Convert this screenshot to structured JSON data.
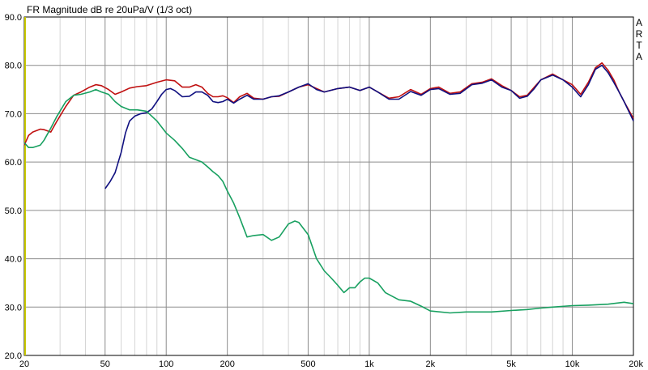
{
  "chart_data": {
    "type": "line",
    "title": "FR Magnitude dB re 20uPa/V (1/3 oct)",
    "watermark": "ARTA",
    "xlabel": "",
    "ylabel": "",
    "x_scale": "log",
    "xlim": [
      20,
      20000
    ],
    "ylim": [
      20,
      90
    ],
    "grid": true,
    "legend": "none",
    "x_ticks": [
      {
        "value": 20,
        "label": "20"
      },
      {
        "value": 50,
        "label": "50"
      },
      {
        "value": 100,
        "label": "100"
      },
      {
        "value": 200,
        "label": "200"
      },
      {
        "value": 500,
        "label": "500"
      },
      {
        "value": 1000,
        "label": "1k"
      },
      {
        "value": 2000,
        "label": "2k"
      },
      {
        "value": 5000,
        "label": "5k"
      },
      {
        "value": 10000,
        "label": "10k"
      },
      {
        "value": 20000,
        "label": "20k"
      }
    ],
    "y_ticks": [
      {
        "value": 90,
        "label": "90.0"
      },
      {
        "value": 80,
        "label": "80.0"
      },
      {
        "value": 70,
        "label": "70.0"
      },
      {
        "value": 60,
        "label": "60.0"
      },
      {
        "value": 50,
        "label": "50.0"
      },
      {
        "value": 40,
        "label": "40.0"
      },
      {
        "value": 30,
        "label": "30.0"
      },
      {
        "value": 20,
        "label": "20.0"
      }
    ],
    "colors": {
      "grid_major": "#8c8c8c",
      "grid_minor": "#d4d4d4",
      "frame": "#000000",
      "left_axis": "#c8c800"
    },
    "series": [
      {
        "color": "#c01010",
        "x": [
          20,
          21,
          22,
          24,
          25,
          27,
          29,
          32,
          35,
          38,
          42,
          45,
          48,
          52,
          56,
          60,
          66,
          72,
          80,
          90,
          100,
          110,
          120,
          130,
          140,
          150,
          160,
          170,
          180,
          190,
          200,
          215,
          230,
          250,
          270,
          300,
          330,
          360,
          400,
          450,
          500,
          550,
          600,
          700,
          800,
          900,
          1000,
          1100,
          1250,
          1400,
          1600,
          1800,
          2000,
          2200,
          2500,
          2800,
          3200,
          3600,
          4000,
          4500,
          5000,
          5500,
          6000,
          6500,
          7000,
          8000,
          9000,
          10000,
          11000,
          12000,
          13000,
          14000,
          15000,
          16000,
          17000,
          18000,
          20000
        ],
        "y": [
          63.5,
          65.5,
          66.2,
          66.8,
          66.7,
          66.2,
          68.5,
          71.5,
          73.8,
          74.5,
          75.5,
          76.0,
          75.8,
          75.0,
          74.0,
          74.5,
          75.3,
          75.6,
          75.8,
          76.5,
          77.0,
          76.8,
          75.5,
          75.5,
          76.0,
          75.5,
          74.2,
          73.5,
          73.5,
          73.7,
          73.3,
          72.3,
          73.5,
          74.2,
          73.2,
          73.0,
          73.5,
          73.6,
          74.5,
          75.5,
          76.0,
          75.2,
          74.5,
          75.2,
          75.5,
          74.8,
          75.5,
          74.5,
          73.2,
          73.5,
          75.0,
          74.0,
          75.2,
          75.5,
          74.2,
          74.5,
          76.2,
          76.5,
          77.2,
          75.8,
          74.8,
          73.5,
          73.8,
          75.5,
          77.0,
          78.2,
          77.0,
          76.0,
          74.0,
          76.5,
          79.5,
          80.5,
          79.0,
          77.0,
          74.5,
          72.5,
          69.0
        ]
      },
      {
        "color": "#101080",
        "x": [
          50,
          53,
          56,
          60,
          63,
          66,
          70,
          75,
          80,
          85,
          90,
          95,
          100,
          105,
          110,
          120,
          130,
          140,
          150,
          160,
          170,
          180,
          190,
          200,
          215,
          230,
          250,
          270,
          300,
          330,
          360,
          400,
          450,
          500,
          550,
          600,
          700,
          800,
          900,
          1000,
          1100,
          1250,
          1400,
          1600,
          1800,
          2000,
          2200,
          2500,
          2800,
          3200,
          3600,
          4000,
          4500,
          5000,
          5500,
          6000,
          6500,
          7000,
          8000,
          9000,
          10000,
          11000,
          12000,
          13000,
          14000,
          15000,
          16000,
          17000,
          18000,
          20000
        ],
        "y": [
          54.5,
          56.0,
          57.8,
          62.0,
          66.0,
          68.5,
          69.5,
          70.0,
          70.2,
          71.0,
          72.5,
          74.0,
          75.0,
          75.2,
          74.8,
          73.5,
          73.6,
          74.5,
          74.5,
          73.8,
          72.5,
          72.3,
          72.5,
          73.0,
          72.2,
          73.0,
          73.8,
          73.0,
          73.0,
          73.5,
          73.7,
          74.5,
          75.5,
          76.2,
          75.0,
          74.5,
          75.2,
          75.5,
          74.8,
          75.5,
          74.5,
          73.0,
          73.0,
          74.6,
          73.8,
          75.0,
          75.2,
          74.0,
          74.2,
          76.0,
          76.3,
          77.0,
          75.5,
          74.8,
          73.2,
          73.6,
          75.2,
          77.0,
          78.0,
          77.0,
          75.5,
          73.5,
          76.0,
          79.2,
          80.0,
          78.5,
          76.5,
          74.5,
          72.5,
          68.5
        ]
      },
      {
        "color": "#18a060",
        "x": [
          20,
          21,
          22,
          24,
          25,
          27,
          29,
          32,
          35,
          38,
          42,
          45,
          48,
          52,
          56,
          60,
          66,
          72,
          80,
          90,
          100,
          110,
          120,
          130,
          140,
          150,
          160,
          170,
          180,
          190,
          200,
          215,
          230,
          250,
          270,
          300,
          330,
          360,
          400,
          430,
          450,
          500,
          550,
          600,
          650,
          700,
          750,
          800,
          850,
          900,
          950,
          1000,
          1100,
          1200,
          1400,
          1600,
          1800,
          2000,
          2500,
          3000,
          3500,
          4000,
          5000,
          6000,
          7000,
          8000,
          10000,
          12000,
          15000,
          18000,
          20000
        ],
        "y": [
          64.0,
          63.0,
          63.0,
          63.5,
          64.5,
          67.0,
          69.5,
          72.5,
          73.8,
          74.0,
          74.5,
          75.0,
          74.5,
          74.0,
          72.5,
          71.5,
          70.8,
          70.8,
          70.5,
          68.5,
          66.0,
          64.5,
          62.8,
          61.0,
          60.5,
          60.0,
          59.0,
          58.0,
          57.2,
          56.0,
          54.0,
          51.5,
          48.5,
          44.5,
          44.8,
          45.0,
          43.8,
          44.5,
          47.2,
          47.8,
          47.5,
          45.0,
          40.0,
          37.5,
          36.0,
          34.5,
          33.0,
          34.0,
          34.0,
          35.2,
          36.0,
          36.0,
          35.0,
          33.0,
          31.5,
          31.2,
          30.2,
          29.2,
          28.8,
          29.0,
          29.0,
          29.0,
          29.3,
          29.5,
          29.8,
          30.0,
          30.3,
          30.4,
          30.6,
          31.0,
          30.7
        ]
      }
    ]
  }
}
